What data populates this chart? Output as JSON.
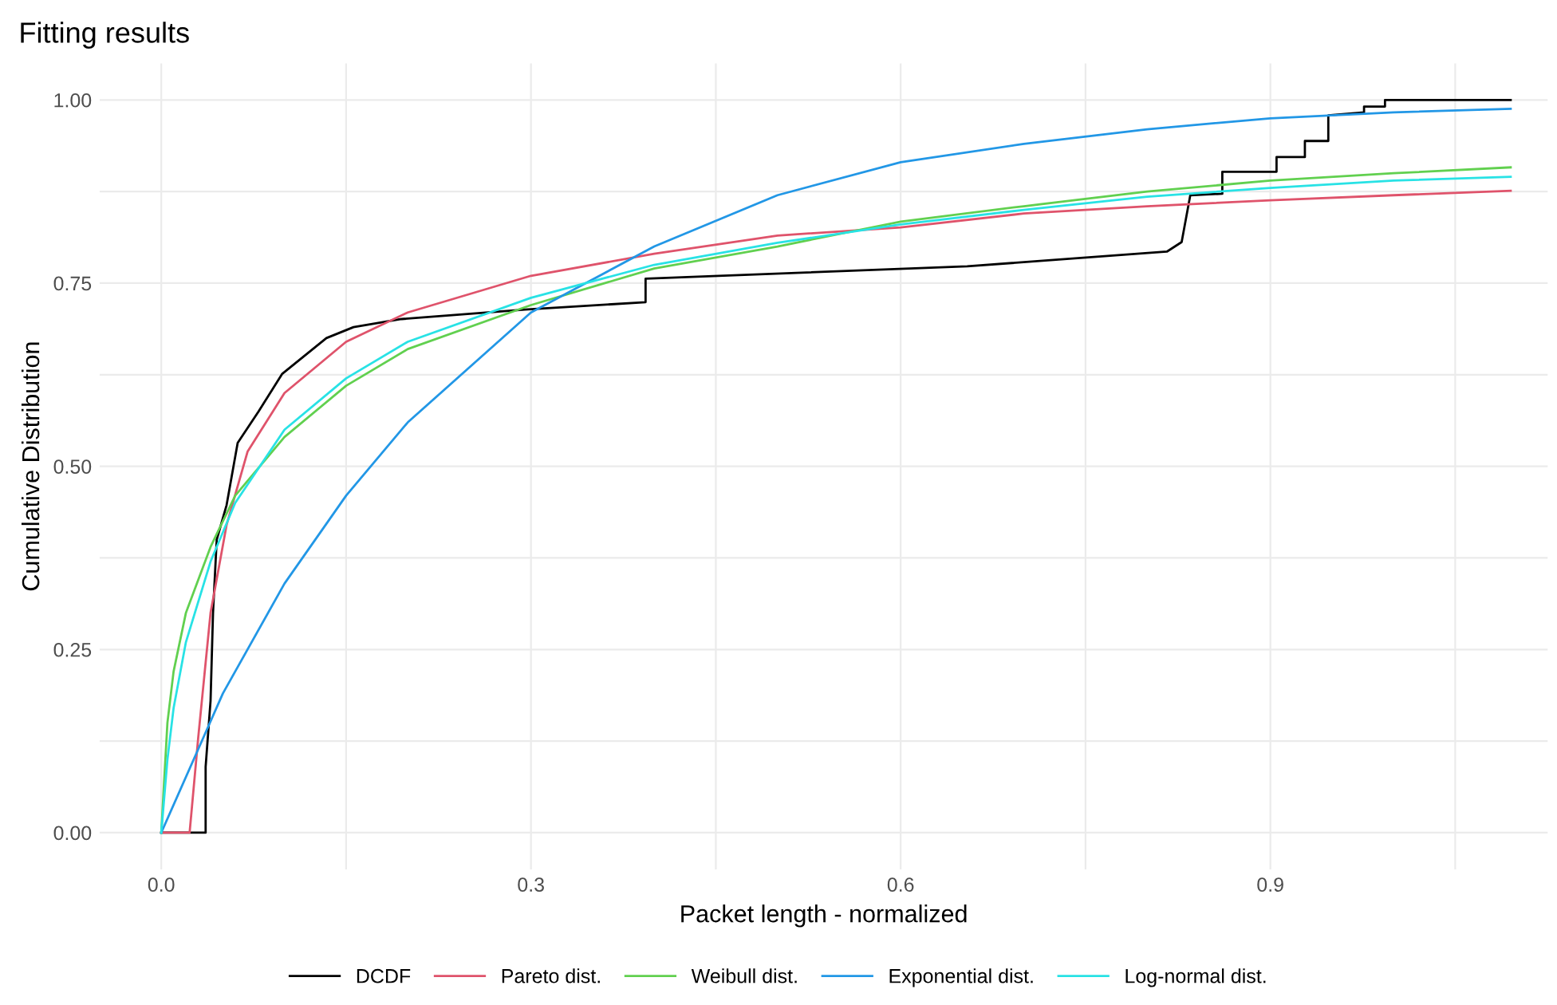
{
  "chart_data": {
    "type": "line",
    "title": "Fitting results",
    "xlabel": "Packet length - normalized",
    "ylabel": "Cumulative Distribution",
    "xlim": [
      -0.05,
      1.125
    ],
    "ylim": [
      -0.05,
      1.05
    ],
    "xticks": [
      {
        "value": 0,
        "label": "0.0"
      },
      {
        "value": 0.15,
        "label": null
      },
      {
        "value": 0.3,
        "label": "0.3"
      },
      {
        "value": 0.45,
        "label": null
      },
      {
        "value": 0.6,
        "label": "0.6"
      },
      {
        "value": 0.75,
        "label": null
      },
      {
        "value": 0.9,
        "label": "0.9"
      },
      {
        "value": 1.05,
        "label": null
      }
    ],
    "yticks": [
      {
        "value": 0,
        "label": "0.00"
      },
      {
        "value": 0.125,
        "label": null
      },
      {
        "value": 0.25,
        "label": "0.25"
      },
      {
        "value": 0.375,
        "label": null
      },
      {
        "value": 0.5,
        "label": "0.50"
      },
      {
        "value": 0.625,
        "label": null
      },
      {
        "value": 0.75,
        "label": "0.75"
      },
      {
        "value": 0.875,
        "label": null
      },
      {
        "value": 1,
        "label": "1.00"
      }
    ],
    "grid": true,
    "legend": "bottom",
    "line_style": "solid",
    "series": [
      {
        "name": "DCDF",
        "color": "#000000",
        "x": [
          0,
          0.036,
          0.036,
          0.04,
          0.042,
          0.045,
          0.053,
          0.062,
          0.079,
          0.098,
          0.134,
          0.156,
          0.195,
          0.295,
          0.393,
          0.393,
          0.654,
          0.816,
          0.828,
          0.835,
          0.861,
          0.861,
          0.905,
          0.905,
          0.928,
          0.928,
          0.947,
          0.947,
          0.976,
          0.976,
          0.993,
          0.993,
          1.095
        ],
        "values": [
          0,
          0,
          0.09,
          0.18,
          0.3,
          0.4,
          0.447,
          0.532,
          0.575,
          0.626,
          0.675,
          0.69,
          0.701,
          0.714,
          0.724,
          0.756,
          0.773,
          0.793,
          0.806,
          0.87,
          0.872,
          0.902,
          0.902,
          0.922,
          0.922,
          0.944,
          0.944,
          0.979,
          0.983,
          0.991,
          0.991,
          1.0,
          1.0
        ]
      },
      {
        "name": "Pareto dist.",
        "color": "#df536b",
        "x": [
          0,
          0.023,
          0.03,
          0.04,
          0.053,
          0.07,
          0.1,
          0.15,
          0.2,
          0.3,
          0.4,
          0.5,
          0.6,
          0.7,
          0.8,
          0.9,
          1.0,
          1.095
        ],
        "values": [
          0,
          0,
          0.13,
          0.3,
          0.42,
          0.52,
          0.6,
          0.67,
          0.71,
          0.76,
          0.79,
          0.815,
          0.826,
          0.845,
          0.855,
          0.863,
          0.87,
          0.876
        ]
      },
      {
        "name": "Weibull dist.",
        "color": "#61d04f",
        "x": [
          0,
          0.005,
          0.01,
          0.02,
          0.04,
          0.06,
          0.1,
          0.15,
          0.2,
          0.3,
          0.4,
          0.5,
          0.6,
          0.7,
          0.8,
          0.9,
          1.0,
          1.095
        ],
        "values": [
          0,
          0.15,
          0.22,
          0.3,
          0.39,
          0.46,
          0.54,
          0.61,
          0.66,
          0.72,
          0.77,
          0.8,
          0.834,
          0.855,
          0.875,
          0.89,
          0.9,
          0.908
        ]
      },
      {
        "name": "Exponential dist.",
        "color": "#2297e6",
        "x": [
          0,
          0.05,
          0.1,
          0.15,
          0.2,
          0.3,
          0.4,
          0.5,
          0.6,
          0.7,
          0.8,
          0.9,
          1.0,
          1.095
        ],
        "values": [
          0,
          0.19,
          0.34,
          0.46,
          0.56,
          0.71,
          0.8,
          0.87,
          0.915,
          0.94,
          0.96,
          0.975,
          0.983,
          0.988
        ]
      },
      {
        "name": "Log-normal dist.",
        "color": "#28e2e5",
        "x": [
          0,
          0.005,
          0.01,
          0.02,
          0.04,
          0.06,
          0.1,
          0.15,
          0.2,
          0.3,
          0.4,
          0.5,
          0.6,
          0.7,
          0.8,
          0.9,
          1.0,
          1.095
        ],
        "values": [
          0,
          0.1,
          0.17,
          0.26,
          0.37,
          0.45,
          0.55,
          0.62,
          0.67,
          0.73,
          0.775,
          0.805,
          0.83,
          0.85,
          0.868,
          0.88,
          0.89,
          0.895
        ]
      }
    ]
  }
}
